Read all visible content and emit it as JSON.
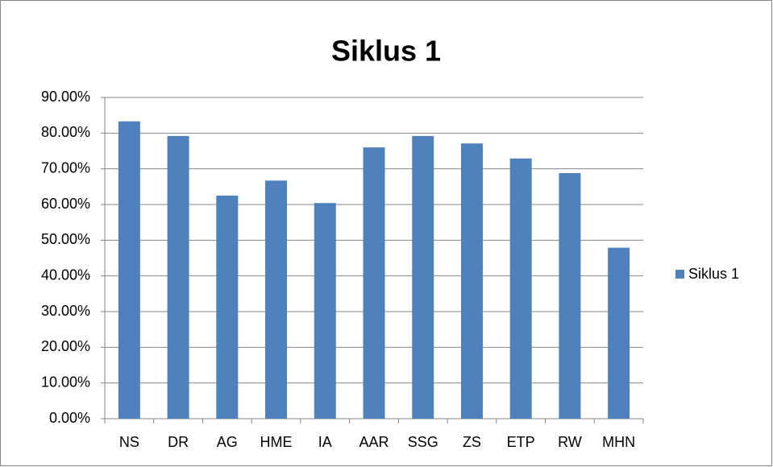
{
  "chart_data": {
    "type": "bar",
    "title": "Siklus 1",
    "categories": [
      "NS",
      "DR",
      "AG",
      "HME",
      "IA",
      "AAR",
      "SSG",
      "ZS",
      "ETP",
      "RW",
      "MHN"
    ],
    "series": [
      {
        "name": "Siklus 1",
        "color": "#4f81bd",
        "values": [
          83.3,
          79.2,
          62.5,
          66.7,
          60.4,
          76,
          79.2,
          77.1,
          72.9,
          68.8,
          47.9
        ]
      }
    ],
    "ylim": [
      0,
      90
    ],
    "yticks": [
      {
        "value": 0,
        "label": "0.00%"
      },
      {
        "value": 10,
        "label": "10.00%"
      },
      {
        "value": 20,
        "label": "20.00%"
      },
      {
        "value": 30,
        "label": "30.00%"
      },
      {
        "value": 40,
        "label": "40.00%"
      },
      {
        "value": 50,
        "label": "50.00%"
      },
      {
        "value": 60,
        "label": "60.00%"
      },
      {
        "value": 70,
        "label": "70.00%"
      },
      {
        "value": 80,
        "label": "80.00%"
      },
      {
        "value": 90,
        "label": "90.00%"
      }
    ],
    "grid": true,
    "legend": "right"
  }
}
